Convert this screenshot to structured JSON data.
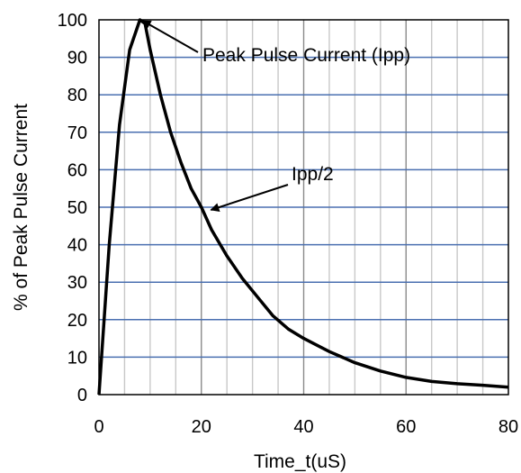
{
  "chart_data": {
    "type": "line",
    "title": "",
    "xlabel": "Time_t(uS)",
    "ylabel": "% of Peak Pulse Current",
    "xlim": [
      0,
      80
    ],
    "ylim": [
      0,
      100
    ],
    "x_ticks": [
      "0",
      "20",
      "40",
      "60",
      "80"
    ],
    "y_ticks": [
      "0",
      "10",
      "20",
      "30",
      "40",
      "50",
      "60",
      "70",
      "80",
      "90",
      "100"
    ],
    "grid": true,
    "colors": {
      "major_grid": "#4a6fb0",
      "minor_grid": "#c8c8c8",
      "series": "#000000"
    },
    "series": [
      {
        "name": "",
        "points": [
          [
            0,
            0
          ],
          [
            2,
            40
          ],
          [
            4,
            72
          ],
          [
            6,
            92
          ],
          [
            8,
            100
          ],
          [
            9,
            99
          ],
          [
            10,
            92
          ],
          [
            12,
            80
          ],
          [
            14,
            70
          ],
          [
            16,
            62
          ],
          [
            18,
            55
          ],
          [
            20,
            50
          ],
          [
            22,
            44
          ],
          [
            25,
            37
          ],
          [
            28,
            31
          ],
          [
            31,
            26
          ],
          [
            34,
            21
          ],
          [
            37,
            17.5
          ],
          [
            40,
            15
          ],
          [
            45,
            11.5
          ],
          [
            50,
            8.5
          ],
          [
            55,
            6.3
          ],
          [
            60,
            4.6
          ],
          [
            65,
            3.5
          ],
          [
            70,
            2.9
          ],
          [
            75,
            2.5
          ],
          [
            80,
            2
          ]
        ]
      }
    ],
    "annotations": [
      {
        "text": "Peak Pulse Current (Ipp)",
        "target": [
          8,
          100
        ]
      },
      {
        "text": "Ipp/2",
        "target": [
          21,
          50
        ]
      }
    ]
  }
}
